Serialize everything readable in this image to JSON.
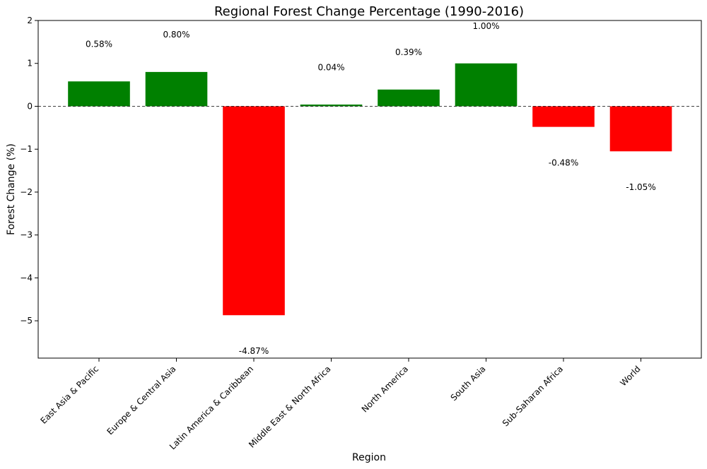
{
  "chart_data": {
    "type": "bar",
    "title": "Regional Forest Change Percentage (1990-2016)",
    "xlabel": "Region",
    "ylabel": "Forest Change (%)",
    "categories": [
      "East Asia & Pacific",
      "Europe & Central Asia",
      "Latin America & Caribbean",
      "Middle East & North Africa",
      "North America",
      "South Asia",
      "Sub-Saharan Africa",
      "World"
    ],
    "values": [
      0.58,
      0.8,
      -4.87,
      0.04,
      0.39,
      1.0,
      -0.48,
      -1.05
    ],
    "value_labels": [
      "0.58%",
      "0.80%",
      "-4.87%",
      "0.04%",
      "0.39%",
      "1.00%",
      "-0.48%",
      "-1.05%"
    ],
    "ylim": [
      -5.87,
      2
    ],
    "yticks": [
      2,
      1,
      0,
      -1,
      -2,
      -3,
      -4,
      -5
    ],
    "ytick_labels": [
      "2",
      "1",
      "0",
      "−1",
      "−2",
      "−3",
      "−4",
      "−5"
    ],
    "zero_line": "dashed",
    "grid": false,
    "colors": {
      "positive": "#008000",
      "negative": "#ff0000"
    }
  }
}
